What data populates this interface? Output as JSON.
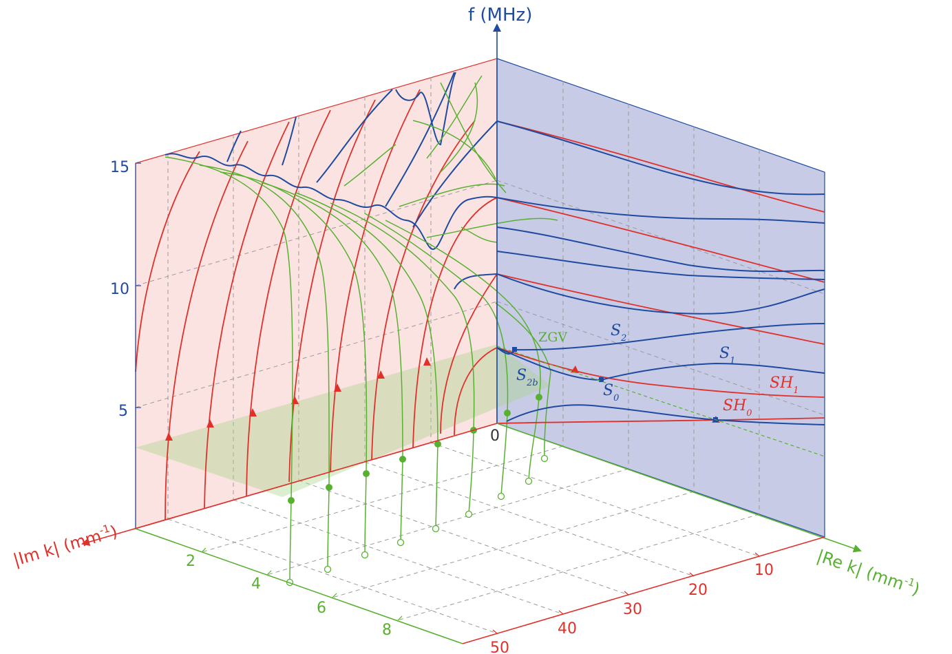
{
  "axes": {
    "f_label": "f (MHz)",
    "im_label": "|Im k| (mm",
    "im_label_sup": "-1",
    "im_label_close": ")",
    "re_label": "|Re k| (mm",
    "re_label_sup": "-1",
    "re_label_close": ")",
    "f_ticks": [
      "15",
      "10",
      "5"
    ],
    "origin": "0",
    "im_ticks": [
      "2",
      "4",
      "6",
      "8"
    ],
    "re_ticks": [
      "10",
      "20",
      "30",
      "40",
      "50"
    ]
  },
  "mode_labels": {
    "zgv": "ZGV",
    "s2": "S",
    "s2_sub": "2",
    "s1": "S",
    "s1_sub": "1",
    "s2b": "S",
    "s2b_sub": "2b",
    "s0": "S",
    "s0_sub": "0",
    "sh1": "SH",
    "sh1_sub": "1",
    "sh0": "SH",
    "sh0_sub": "0"
  },
  "colors": {
    "red_plane": "#fbe3e1",
    "blue_plane": "#c8cbe6",
    "red": "#e0302a",
    "blue": "#1e4aa0",
    "green": "#58b030"
  }
}
